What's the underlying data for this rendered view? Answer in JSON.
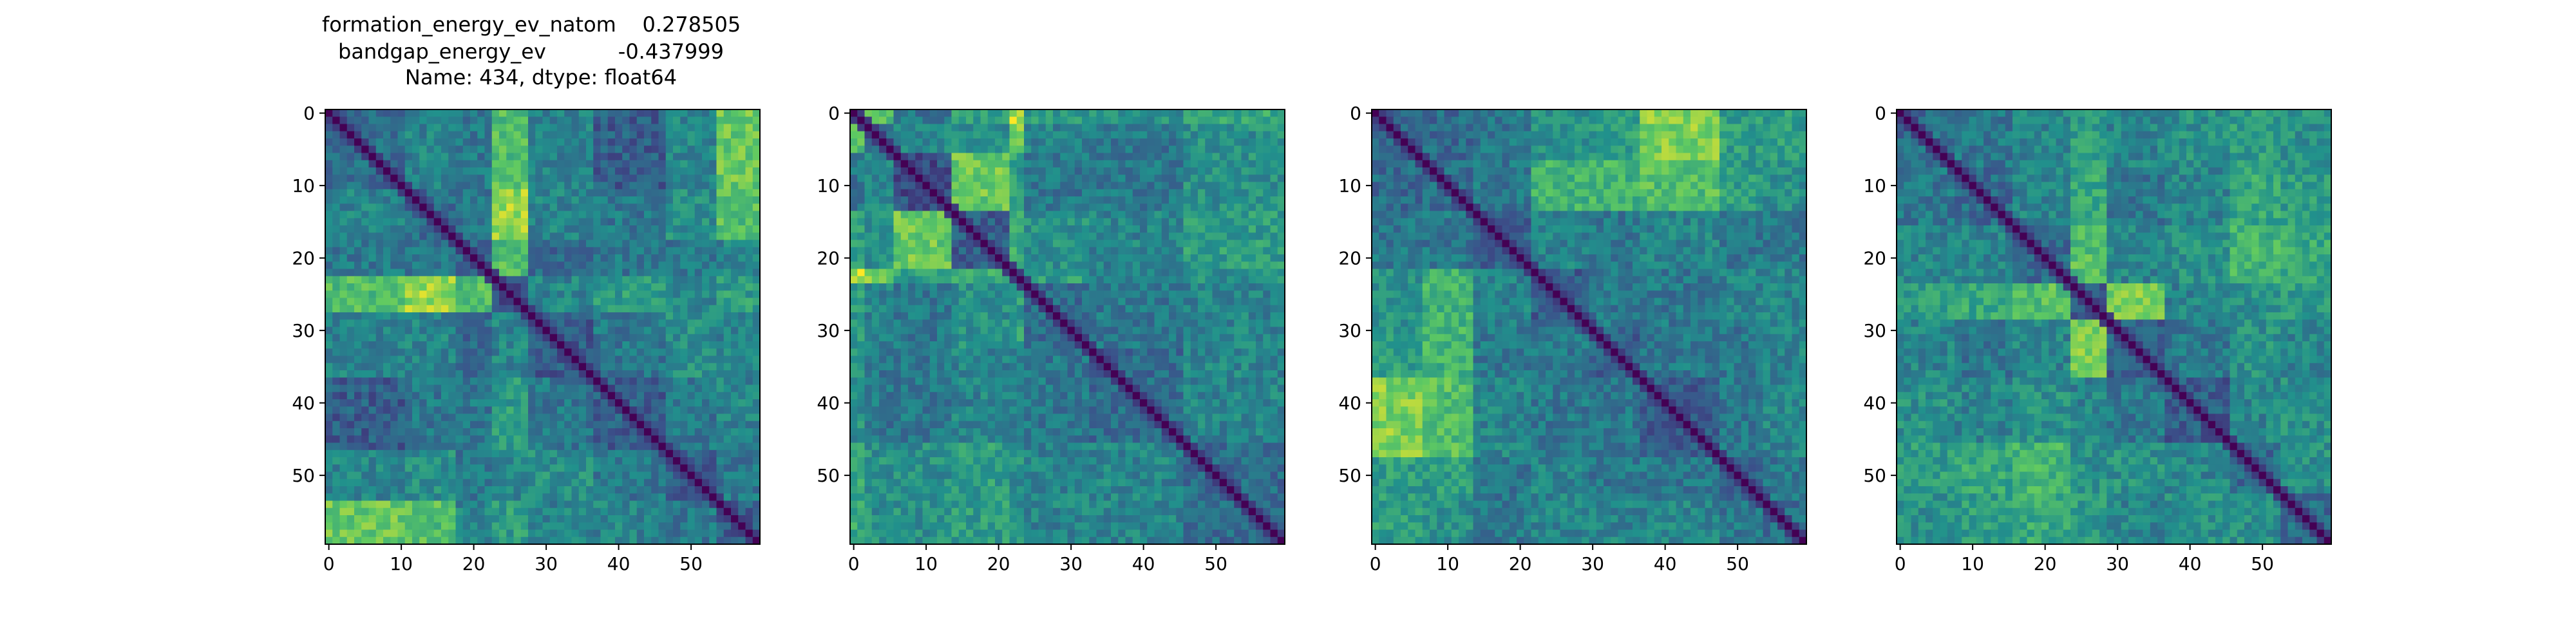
{
  "figure": {
    "title_lines": [
      "formation_energy_ev_natom    0.278505",
      "bandgap_energy_ev           -0.437999",
      "Name: 434, dtype: float64"
    ]
  },
  "colormap": [
    "#440154",
    "#3b528b",
    "#21918c",
    "#5ec962",
    "#fde725"
  ],
  "chart_data": [
    {
      "type": "heatmap",
      "title": "",
      "size": 60,
      "xticks": [
        0,
        10,
        20,
        30,
        40,
        50
      ],
      "yticks": [
        0,
        10,
        20,
        30,
        40,
        50
      ],
      "xlim": [
        -0.5,
        59.5
      ],
      "ylim": [
        59.5,
        -0.5
      ],
      "block_boundaries": [
        0,
        11,
        18,
        23,
        28,
        37,
        47,
        54,
        60
      ],
      "block_means": [
        [
          0.35,
          0.45,
          0.4,
          0.7,
          0.45,
          0.3,
          0.45,
          0.75
        ],
        [
          0.45,
          0.35,
          0.4,
          0.85,
          0.45,
          0.4,
          0.5,
          0.7
        ],
        [
          0.4,
          0.4,
          0.3,
          0.7,
          0.35,
          0.4,
          0.4,
          0.45
        ],
        [
          0.7,
          0.85,
          0.7,
          0.25,
          0.45,
          0.55,
          0.45,
          0.55
        ],
        [
          0.45,
          0.45,
          0.35,
          0.45,
          0.3,
          0.4,
          0.5,
          0.45
        ],
        [
          0.3,
          0.4,
          0.4,
          0.55,
          0.4,
          0.3,
          0.4,
          0.45
        ],
        [
          0.45,
          0.5,
          0.4,
          0.45,
          0.5,
          0.4,
          0.3,
          0.4
        ],
        [
          0.75,
          0.7,
          0.45,
          0.55,
          0.45,
          0.45,
          0.4,
          0.3
        ]
      ]
    },
    {
      "type": "heatmap",
      "title": "",
      "size": 60,
      "xticks": [
        0,
        10,
        20,
        30,
        40,
        50
      ],
      "yticks": [
        0,
        10,
        20,
        30,
        40,
        50
      ],
      "xlim": [
        -0.5,
        59.5
      ],
      "ylim": [
        59.5,
        -0.5
      ],
      "block_boundaries": [
        0,
        2,
        6,
        14,
        22,
        24,
        33,
        46,
        60
      ],
      "block_means": [
        [
          0.25,
          0.7,
          0.4,
          0.55,
          0.9,
          0.55,
          0.5,
          0.6
        ],
        [
          0.7,
          0.3,
          0.45,
          0.5,
          0.8,
          0.45,
          0.4,
          0.5
        ],
        [
          0.4,
          0.45,
          0.25,
          0.75,
          0.55,
          0.4,
          0.4,
          0.5
        ],
        [
          0.55,
          0.5,
          0.75,
          0.3,
          0.6,
          0.5,
          0.45,
          0.55
        ],
        [
          0.9,
          0.8,
          0.55,
          0.6,
          0.3,
          0.55,
          0.45,
          0.5
        ],
        [
          0.55,
          0.45,
          0.4,
          0.5,
          0.55,
          0.35,
          0.4,
          0.45
        ],
        [
          0.5,
          0.4,
          0.4,
          0.45,
          0.45,
          0.4,
          0.35,
          0.45
        ],
        [
          0.6,
          0.5,
          0.5,
          0.55,
          0.5,
          0.45,
          0.45,
          0.35
        ]
      ]
    },
    {
      "type": "heatmap",
      "title": "",
      "size": 60,
      "xticks": [
        0,
        10,
        20,
        30,
        40,
        50
      ],
      "yticks": [
        0,
        10,
        20,
        30,
        40,
        50
      ],
      "xlim": [
        -0.5,
        59.5
      ],
      "ylim": [
        59.5,
        -0.5
      ],
      "block_boundaries": [
        0,
        7,
        14,
        22,
        30,
        37,
        48,
        54,
        60
      ],
      "block_means": [
        [
          0.35,
          0.35,
          0.4,
          0.5,
          0.55,
          0.8,
          0.55,
          0.55
        ],
        [
          0.35,
          0.35,
          0.4,
          0.65,
          0.65,
          0.7,
          0.55,
          0.5
        ],
        [
          0.4,
          0.4,
          0.3,
          0.45,
          0.4,
          0.45,
          0.4,
          0.4
        ],
        [
          0.5,
          0.65,
          0.45,
          0.3,
          0.4,
          0.4,
          0.45,
          0.45
        ],
        [
          0.55,
          0.65,
          0.4,
          0.4,
          0.3,
          0.4,
          0.4,
          0.45
        ],
        [
          0.8,
          0.7,
          0.45,
          0.4,
          0.4,
          0.3,
          0.4,
          0.45
        ],
        [
          0.55,
          0.55,
          0.4,
          0.45,
          0.4,
          0.4,
          0.3,
          0.4
        ],
        [
          0.55,
          0.5,
          0.4,
          0.45,
          0.45,
          0.45,
          0.4,
          0.35
        ]
      ]
    },
    {
      "type": "heatmap",
      "title": "",
      "size": 60,
      "xticks": [
        0,
        10,
        20,
        30,
        40,
        50
      ],
      "yticks": [
        0,
        10,
        20,
        30,
        40,
        50
      ],
      "xlim": [
        -0.5,
        59.5
      ],
      "ylim": [
        59.5,
        -0.5
      ],
      "block_boundaries": [
        0,
        8,
        16,
        24,
        29,
        37,
        46,
        53,
        60
      ],
      "block_means": [
        [
          0.35,
          0.4,
          0.45,
          0.55,
          0.45,
          0.5,
          0.55,
          0.5
        ],
        [
          0.4,
          0.35,
          0.45,
          0.6,
          0.4,
          0.45,
          0.6,
          0.55
        ],
        [
          0.45,
          0.45,
          0.35,
          0.7,
          0.45,
          0.5,
          0.65,
          0.6
        ],
        [
          0.55,
          0.6,
          0.7,
          0.3,
          0.8,
          0.45,
          0.5,
          0.55
        ],
        [
          0.45,
          0.4,
          0.45,
          0.8,
          0.3,
          0.4,
          0.5,
          0.45
        ],
        [
          0.5,
          0.45,
          0.5,
          0.45,
          0.4,
          0.3,
          0.45,
          0.5
        ],
        [
          0.55,
          0.6,
          0.65,
          0.5,
          0.5,
          0.45,
          0.35,
          0.5
        ],
        [
          0.5,
          0.55,
          0.6,
          0.55,
          0.45,
          0.5,
          0.5,
          0.35
        ]
      ]
    }
  ]
}
